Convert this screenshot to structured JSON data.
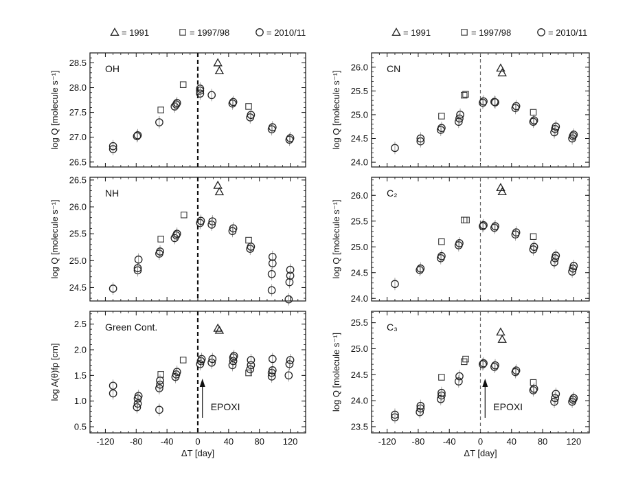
{
  "legend": {
    "items": [
      {
        "symbol": "triangle",
        "label": "= 1991"
      },
      {
        "symbol": "square",
        "label": "= 1997/98"
      },
      {
        "symbol": "circle",
        "label": "= 2010/11"
      }
    ]
  },
  "chart_data": [
    {
      "type": "scatter",
      "panel": "OH",
      "ylabel": "log Q [molecule s⁻¹]",
      "xlim": [
        -140,
        140
      ],
      "ylim": [
        26.4,
        28.7
      ],
      "yticks": [
        "26.5",
        "27.0",
        "27.5",
        "28.0",
        "28.5"
      ],
      "xticks": [
        "-120",
        "-80",
        "-40",
        "0",
        "40",
        "80",
        "120"
      ],
      "xlabel": "",
      "vline": {
        "x": 0,
        "style": "dashed-bold"
      },
      "series": [
        {
          "name": "1991",
          "marker": "triangle",
          "points": [
            [
              26,
              28.5
            ],
            [
              28,
              28.34
            ]
          ]
        },
        {
          "name": "1997/98",
          "marker": "square",
          "points": [
            [
              -48,
              27.55
            ],
            [
              -19,
              28.06
            ],
            [
              66,
              27.62
            ]
          ]
        },
        {
          "name": "2010/11",
          "marker": "circle",
          "points": [
            [
              -110,
              26.76
            ],
            [
              -110,
              26.82
            ],
            [
              -79,
              27.02
            ],
            [
              -78,
              27.04
            ],
            [
              -50,
              27.3
            ],
            [
              -30,
              27.62
            ],
            [
              -28,
              27.66
            ],
            [
              -27,
              27.69
            ],
            [
              3,
              27.88
            ],
            [
              3,
              27.94
            ],
            [
              3,
              27.98
            ],
            [
              18,
              27.85
            ],
            [
              45,
              27.68
            ],
            [
              46,
              27.71
            ],
            [
              68,
              27.4
            ],
            [
              69,
              27.45
            ],
            [
              96,
              27.16
            ],
            [
              97,
              27.2
            ],
            [
              119,
              26.95
            ],
            [
              120,
              26.98
            ]
          ]
        }
      ]
    },
    {
      "type": "scatter",
      "panel": "CN",
      "ylabel": "log Q [molecule s⁻¹]",
      "xlim": [
        -140,
        140
      ],
      "ylim": [
        23.9,
        26.3
      ],
      "yticks": [
        "24.0",
        "24.5",
        "25.0",
        "25.5",
        "26.0"
      ],
      "xticks": [
        "-120",
        "-80",
        "-40",
        "0",
        "40",
        "80",
        "120"
      ],
      "xlabel": "",
      "vline": {
        "x": 0,
        "style": "dashed"
      },
      "series": [
        {
          "name": "1991",
          "marker": "triangle",
          "points": [
            [
              26,
              25.98
            ],
            [
              28,
              25.88
            ]
          ]
        },
        {
          "name": "1997/98",
          "marker": "square",
          "points": [
            [
              -50,
              24.97
            ],
            [
              -21,
              25.41
            ],
            [
              -19,
              25.43
            ],
            [
              68,
              25.05
            ]
          ]
        },
        {
          "name": "2010/11",
          "marker": "circle",
          "points": [
            [
              -110,
              24.3
            ],
            [
              -77,
              24.44
            ],
            [
              -77,
              24.5
            ],
            [
              -51,
              24.68
            ],
            [
              -50,
              24.72
            ],
            [
              -28,
              24.85
            ],
            [
              -27,
              24.92
            ],
            [
              -26,
              25.0
            ],
            [
              3,
              25.25
            ],
            [
              4,
              25.28
            ],
            [
              18,
              25.27
            ],
            [
              19,
              25.26
            ],
            [
              45,
              25.14
            ],
            [
              46,
              25.18
            ],
            [
              68,
              24.85
            ],
            [
              69,
              24.88
            ],
            [
              95,
              24.63
            ],
            [
              96,
              24.7
            ],
            [
              97,
              24.75
            ],
            [
              118,
              24.5
            ],
            [
              119,
              24.55
            ],
            [
              120,
              24.58
            ]
          ]
        }
      ]
    },
    {
      "type": "scatter",
      "panel": "NH",
      "ylabel": "log Q [molecule s⁻¹]",
      "xlim": [
        -140,
        140
      ],
      "ylim": [
        24.25,
        26.55
      ],
      "yticks": [
        "24.5",
        "25.0",
        "25.5",
        "26.0",
        "26.5"
      ],
      "xticks": [
        "-120",
        "-80",
        "-40",
        "0",
        "40",
        "80",
        "120"
      ],
      "xlabel": "",
      "vline": {
        "x": 0,
        "style": "dashed-bold"
      },
      "series": [
        {
          "name": "1991",
          "marker": "triangle",
          "points": [
            [
              26,
              26.4
            ],
            [
              28,
              26.28
            ]
          ]
        },
        {
          "name": "1997/98",
          "marker": "square",
          "points": [
            [
              -48,
              25.4
            ],
            [
              -18,
              25.85
            ],
            [
              66,
              25.38
            ]
          ]
        },
        {
          "name": "2010/11",
          "marker": "circle",
          "points": [
            [
              -110,
              24.48
            ],
            [
              -78,
              24.82
            ],
            [
              -78,
              24.86
            ],
            [
              -77,
              25.02
            ],
            [
              -50,
              25.13
            ],
            [
              -49,
              25.17
            ],
            [
              -30,
              25.42
            ],
            [
              -28,
              25.47
            ],
            [
              -27,
              25.5
            ],
            [
              3,
              25.7
            ],
            [
              4,
              25.74
            ],
            [
              18,
              25.67
            ],
            [
              19,
              25.73
            ],
            [
              45,
              25.55
            ],
            [
              46,
              25.6
            ],
            [
              68,
              25.22
            ],
            [
              69,
              25.26
            ],
            [
              96,
              24.45
            ],
            [
              96,
              24.75
            ],
            [
              97,
              24.95
            ],
            [
              97,
              25.07
            ],
            [
              118,
              24.28
            ],
            [
              119,
              24.6
            ],
            [
              120,
              24.72
            ],
            [
              120,
              24.83
            ]
          ]
        }
      ]
    },
    {
      "type": "scatter",
      "panel": "C₂",
      "ylabel": "log Q [molecule s⁻¹]",
      "xlim": [
        -140,
        140
      ],
      "ylim": [
        23.95,
        26.35
      ],
      "yticks": [
        "24.0",
        "24.5",
        "25.0",
        "25.5",
        "26.0"
      ],
      "xticks": [
        "-120",
        "-80",
        "-40",
        "0",
        "40",
        "80",
        "120"
      ],
      "xlabel": "",
      "vline": {
        "x": 0,
        "style": "dashed"
      },
      "series": [
        {
          "name": "1991",
          "marker": "triangle",
          "points": [
            [
              26,
              26.15
            ],
            [
              28,
              26.07
            ]
          ]
        },
        {
          "name": "1997/98",
          "marker": "square",
          "points": [
            [
              -50,
              25.1
            ],
            [
              -21,
              25.52
            ],
            [
              -18,
              25.52
            ],
            [
              68,
              25.2
            ]
          ]
        },
        {
          "name": "2010/11",
          "marker": "circle",
          "points": [
            [
              -110,
              24.28
            ],
            [
              -78,
              24.55
            ],
            [
              -77,
              24.58
            ],
            [
              -51,
              24.78
            ],
            [
              -50,
              24.82
            ],
            [
              -28,
              25.03
            ],
            [
              -27,
              25.07
            ],
            [
              3,
              25.4
            ],
            [
              4,
              25.42
            ],
            [
              18,
              25.37
            ],
            [
              19,
              25.4
            ],
            [
              45,
              25.24
            ],
            [
              46,
              25.28
            ],
            [
              68,
              24.95
            ],
            [
              69,
              25.0
            ],
            [
              95,
              24.7
            ],
            [
              96,
              24.78
            ],
            [
              97,
              24.83
            ],
            [
              118,
              24.52
            ],
            [
              119,
              24.58
            ],
            [
              120,
              24.63
            ]
          ]
        }
      ]
    },
    {
      "type": "scatter",
      "panel": "Green Cont.",
      "ylabel": "log A(θ)fρ [cm]",
      "xlim": [
        -140,
        140
      ],
      "ylim": [
        0.38,
        2.75
      ],
      "yticks": [
        "0.5",
        "1.0",
        "1.5",
        "2.0",
        "2.5"
      ],
      "xticks": [
        "-120",
        "-80",
        "-40",
        "0",
        "40",
        "80",
        "120"
      ],
      "xlabel": "ΔT [day]",
      "vline": {
        "x": 0,
        "style": "dashed-bold"
      },
      "annotation": {
        "text": "EPOXI",
        "x": 6
      },
      "series": [
        {
          "name": "1991",
          "marker": "triangle",
          "points": [
            [
              26,
              2.42
            ],
            [
              28,
              2.38
            ]
          ]
        },
        {
          "name": "1997/98",
          "marker": "square",
          "points": [
            [
              -48,
              1.52
            ],
            [
              -19,
              1.8
            ],
            [
              66,
              1.55
            ]
          ]
        },
        {
          "name": "2010/11",
          "marker": "circle",
          "points": [
            [
              -110,
              1.15
            ],
            [
              -110,
              1.3
            ],
            [
              -79,
              0.88
            ],
            [
              -78,
              0.95
            ],
            [
              -78,
              1.05
            ],
            [
              -77,
              1.1
            ],
            [
              -50,
              0.83
            ],
            [
              -50,
              1.25
            ],
            [
              -49,
              1.32
            ],
            [
              -49,
              1.4
            ],
            [
              -29,
              1.47
            ],
            [
              -28,
              1.52
            ],
            [
              -27,
              1.57
            ],
            [
              3,
              1.72
            ],
            [
              4,
              1.78
            ],
            [
              5,
              1.82
            ],
            [
              18,
              1.75
            ],
            [
              19,
              1.82
            ],
            [
              45,
              1.7
            ],
            [
              46,
              1.78
            ],
            [
              46,
              1.85
            ],
            [
              47,
              1.88
            ],
            [
              68,
              1.62
            ],
            [
              69,
              1.7
            ],
            [
              69,
              1.8
            ],
            [
              96,
              1.48
            ],
            [
              96,
              1.55
            ],
            [
              97,
              1.6
            ],
            [
              97,
              1.82
            ],
            [
              118,
              1.5
            ],
            [
              119,
              1.72
            ],
            [
              120,
              1.8
            ]
          ]
        }
      ]
    },
    {
      "type": "scatter",
      "panel": "C₃",
      "ylabel": "log Q [molecule s⁻¹]",
      "xlim": [
        -140,
        140
      ],
      "ylim": [
        23.38,
        25.72
      ],
      "yticks": [
        "23.5",
        "24.0",
        "24.5",
        "25.0",
        "25.5"
      ],
      "xticks": [
        "-120",
        "-80",
        "-40",
        "0",
        "40",
        "80",
        "120"
      ],
      "xlabel": "ΔT [day]",
      "vline": {
        "x": 0,
        "style": "dashed"
      },
      "annotation": {
        "text": "EPOXI",
        "x": 6
      },
      "series": [
        {
          "name": "1991",
          "marker": "triangle",
          "points": [
            [
              26,
              25.32
            ],
            [
              28,
              25.18
            ]
          ]
        },
        {
          "name": "1997/98",
          "marker": "square",
          "points": [
            [
              -50,
              24.45
            ],
            [
              -21,
              24.75
            ],
            [
              -19,
              24.8
            ],
            [
              68,
              24.35
            ]
          ]
        },
        {
          "name": "2010/11",
          "marker": "circle",
          "points": [
            [
              -110,
              23.68
            ],
            [
              -110,
              23.73
            ],
            [
              -78,
              23.78
            ],
            [
              -77,
              23.85
            ],
            [
              -77,
              23.9
            ],
            [
              -51,
              24.03
            ],
            [
              -50,
              24.1
            ],
            [
              -50,
              24.15
            ],
            [
              -28,
              24.37
            ],
            [
              -27,
              24.47
            ],
            [
              3,
              24.7
            ],
            [
              4,
              24.72
            ],
            [
              18,
              24.65
            ],
            [
              19,
              24.68
            ],
            [
              45,
              24.55
            ],
            [
              46,
              24.58
            ],
            [
              68,
              24.2
            ],
            [
              69,
              24.23
            ],
            [
              95,
              23.98
            ],
            [
              96,
              24.05
            ],
            [
              97,
              24.13
            ],
            [
              118,
              23.98
            ],
            [
              119,
              24.02
            ],
            [
              120,
              24.05
            ]
          ]
        }
      ]
    }
  ]
}
